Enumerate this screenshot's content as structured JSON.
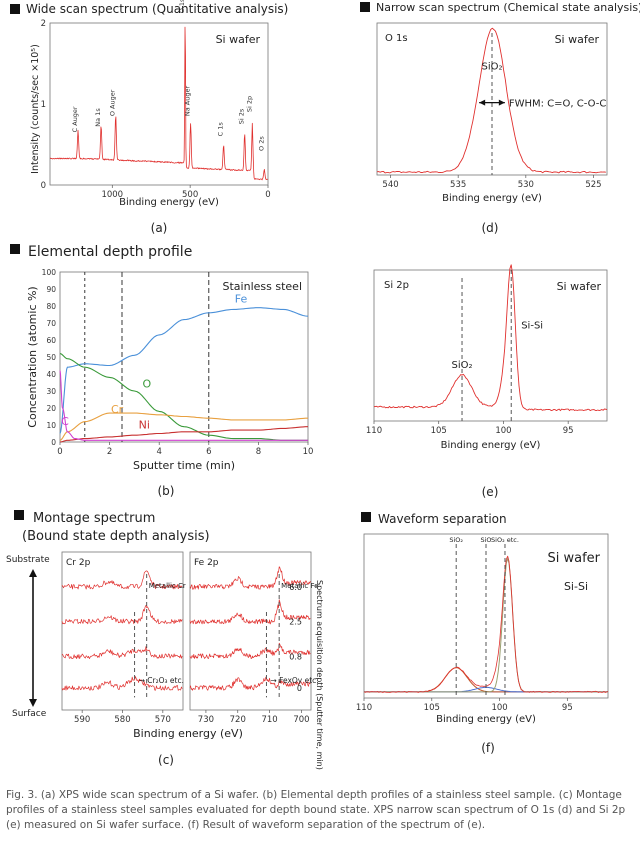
{
  "colors": {
    "spectrum": "#e0302e",
    "fe": "#4a90d9",
    "o": "#3a9a3a",
    "cr": "#e8a040",
    "ni": "#c83030",
    "c": "#d040d0",
    "si": "#9aa070",
    "dash": "#444444"
  },
  "caption": "Fig.  3. (a) XPS wide scan spectrum of a Si wafer. (b) Elemental depth profiles of a stainless steel sample. (c) Montage profiles of a stainless steel samples evaluated for depth bound state. XPS narrow scan spectrum of O 1s (d) and Si 2p (e) measured on Si wafer surface. (f) Result of waveform separation of the spectrum of (e).",
  "chart_data": [
    {
      "id": "a",
      "type": "line",
      "title": "Wide scan spectrum (Quantitative analysis)",
      "panel_label": "(a)",
      "sample": "Si wafer",
      "xlabel": "Binding energy (eV)",
      "ylabel": "Intensity (counts/sec ×10⁵)",
      "xlim": [
        1400,
        0
      ],
      "ylim": [
        0,
        2.0
      ],
      "xticks": [
        "1000",
        "500",
        "0"
      ],
      "yticks": [
        "0",
        "1",
        "2"
      ],
      "peaks": [
        {
          "name": "C Auger",
          "x": 1220,
          "y": 0.35
        },
        {
          "name": "Na 1s",
          "x": 1072,
          "y": 0.42
        },
        {
          "name": "O Auger",
          "x": 978,
          "y": 0.55
        },
        {
          "name": "O 1s",
          "x": 532,
          "y": 1.82
        },
        {
          "name": "Na Auger",
          "x": 497,
          "y": 0.55
        },
        {
          "name": "C 1s",
          "x": 285,
          "y": 0.3
        },
        {
          "name": "Si 2s",
          "x": 150,
          "y": 0.45
        },
        {
          "name": "Si 2p",
          "x": 100,
          "y": 0.6
        },
        {
          "name": "O 2s",
          "x": 24,
          "y": 0.12
        }
      ]
    },
    {
      "id": "b",
      "type": "line",
      "title": "Elemental depth profile",
      "panel_label": "(b)",
      "sample": "Stainless steel",
      "xlabel": "Sputter time (min)",
      "ylabel": "Concentration (atomic %)",
      "xlim": [
        0,
        10
      ],
      "ylim": [
        0,
        100
      ],
      "xticks": [
        "0",
        "2",
        "4",
        "6",
        "8",
        "10"
      ],
      "yticks": [
        "0",
        "10",
        "20",
        "30",
        "40",
        "50",
        "60",
        "70",
        "80",
        "90",
        "100"
      ],
      "markers_x": [
        1,
        2.5,
        6
      ],
      "series": [
        {
          "name": "Fe",
          "x": [
            0,
            0.3,
            1,
            2,
            3,
            4,
            5,
            6,
            7,
            8,
            9,
            10
          ],
          "values": [
            5,
            44,
            46,
            45,
            51,
            63,
            72,
            76,
            78,
            79,
            78,
            74
          ]
        },
        {
          "name": "O",
          "x": [
            0,
            0.3,
            1,
            2,
            3,
            4,
            5,
            6,
            7,
            8,
            9,
            10
          ],
          "values": [
            52,
            49,
            44,
            38,
            30,
            18,
            9,
            4,
            2,
            2,
            1,
            1
          ]
        },
        {
          "name": "Cr",
          "x": [
            0,
            0.3,
            1,
            2,
            3,
            4,
            5,
            6,
            7,
            8,
            9,
            10
          ],
          "values": [
            1,
            6,
            12,
            17,
            17,
            16,
            15,
            14,
            13,
            13,
            13,
            14
          ]
        },
        {
          "name": "Ni",
          "x": [
            0,
            0.3,
            1,
            2,
            3,
            4,
            5,
            6,
            7,
            8,
            9,
            10
          ],
          "values": [
            0,
            1,
            2,
            3,
            4,
            5,
            6,
            6,
            7,
            7,
            8,
            9
          ]
        },
        {
          "name": "C",
          "x": [
            0,
            0.1,
            0.3,
            0.6,
            1,
            2,
            4,
            6,
            8,
            10
          ],
          "values": [
            42,
            20,
            6,
            2,
            1,
            1,
            1,
            1,
            1,
            1
          ]
        }
      ]
    },
    {
      "id": "c",
      "type": "line",
      "title": "Montage spectrum",
      "subtitle": "(Bound state depth analysis)",
      "panel_label": "(c)",
      "xlabel": "Binding energy (eV)",
      "top_label": "Substrate",
      "bottom_label": "Surface",
      "right_axis_label": "Spectrum acquisition depth (Sputter time, min)",
      "depth_ticks": [
        "6.0",
        "2.5",
        "0.8",
        "0"
      ],
      "subpanels": [
        {
          "name": "Cr 2p",
          "xlim": [
            595,
            565
          ],
          "xticks": [
            "590",
            "580",
            "570"
          ],
          "metallic_label": "Metallic Cr",
          "metallic_x": 574,
          "oxide_label": "Cr₂O₃ etc.",
          "oxide_x": 577
        },
        {
          "name": "Fe 2p",
          "xlim": [
            735,
            697
          ],
          "xticks": [
            "730",
            "720",
            "710",
            "700"
          ],
          "metallic_label": "Metallic Fe",
          "metallic_x": 707,
          "oxide_label": "FexOy etc.",
          "oxide_x": 711
        }
      ]
    },
    {
      "id": "d",
      "type": "line",
      "title": "Narrow scan spectrum (Chemical state analysis)",
      "panel_label": "(d)",
      "sample": "Si wafer",
      "peak_label": "O 1s",
      "component_label": "SiO₂",
      "annotation": "FWHM: C=O, C-O-C",
      "xlabel": "Binding energy (eV)",
      "xlim": [
        541,
        524
      ],
      "xticks": [
        "540",
        "535",
        "530",
        "525"
      ],
      "peak_center": 532.5,
      "fwhm": 1.8,
      "peak_height": 1.0
    },
    {
      "id": "e",
      "type": "line",
      "panel_label": "(e)",
      "sample": "Si wafer",
      "peak_label": "Si 2p",
      "components": [
        {
          "name": "SiO₂",
          "center": 103.2,
          "height": 0.23
        },
        {
          "name": "Si-Si",
          "center": 99.4,
          "height": 1.0
        }
      ],
      "xlabel": "Binding energy (eV)",
      "xlim": [
        110,
        92
      ],
      "xticks": [
        "110",
        "105",
        "100",
        "95"
      ]
    },
    {
      "id": "f",
      "type": "line",
      "title": "Waveform separation",
      "panel_label": "(f)",
      "sample": "Si wafer",
      "main_component": "Si-Si",
      "top_markers": [
        {
          "name": "SiO₂",
          "x": 103.2
        },
        {
          "name": "SiO",
          "x": 101.0
        },
        {
          "name": "SiO₂ etc.",
          "x": 99.6
        }
      ],
      "xlabel": "Binding energy (eV)",
      "xlim": [
        110,
        92
      ],
      "xticks": [
        "110",
        "105",
        "100",
        "95"
      ]
    }
  ]
}
